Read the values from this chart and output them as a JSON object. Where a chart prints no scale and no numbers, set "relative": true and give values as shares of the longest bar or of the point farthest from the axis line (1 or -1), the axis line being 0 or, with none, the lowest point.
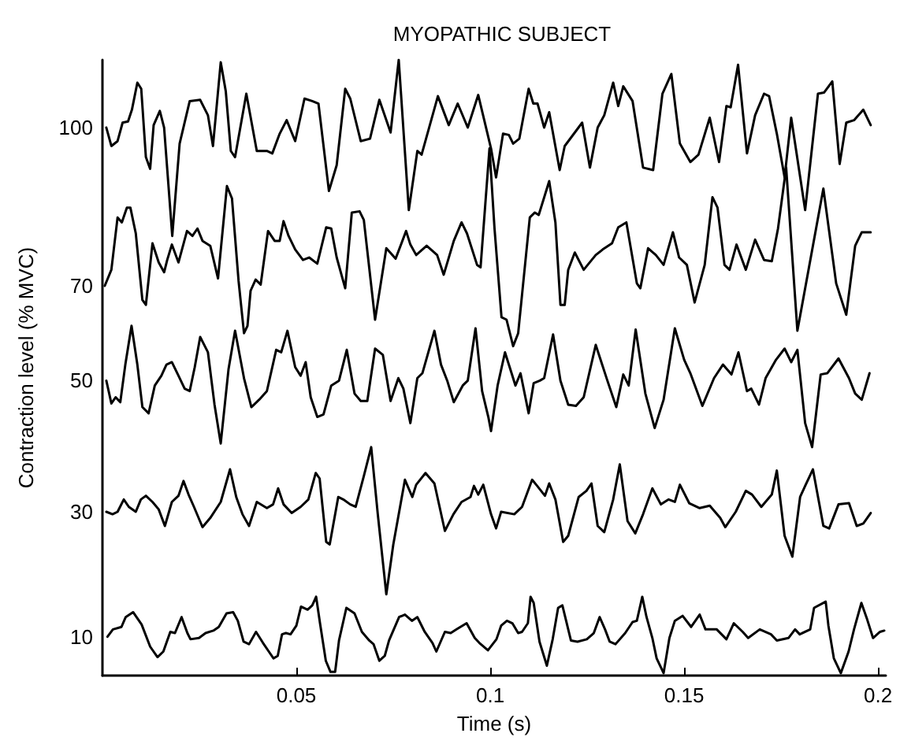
{
  "chart_data": {
    "type": "line",
    "title": "MYOPATHIC SUBJECT",
    "xlabel": "Time (s)",
    "ylabel": "Contraction level (% MVC)",
    "xlim": [
      0,
      0.202
    ],
    "xticks": [
      0.05,
      0.1,
      0.15,
      0.2
    ],
    "relative": true,
    "grid": false,
    "marker": "none",
    "line_style": "solid",
    "series": [
      {
        "name": "100",
        "color": "#000000",
        "x": [
          0.001,
          0.0023,
          0.0039,
          0.0052,
          0.0066,
          0.0076,
          0.009,
          0.01,
          0.0112,
          0.0123,
          0.0132,
          0.0148,
          0.0159,
          0.018,
          0.0199,
          0.0225,
          0.0252,
          0.0272,
          0.0285,
          0.0305,
          0.0318,
          0.0331,
          0.0342,
          0.0371,
          0.0398,
          0.0424,
          0.0438,
          0.0457,
          0.0475,
          0.0497,
          0.0521,
          0.0541,
          0.0557,
          0.0584,
          0.0604,
          0.0626,
          0.0639,
          0.0666,
          0.069,
          0.0714,
          0.0743,
          0.0764,
          0.079,
          0.0812,
          0.0823,
          0.0865,
          0.0893,
          0.0916,
          0.0942,
          0.0969,
          0.1002,
          0.1015,
          0.1033,
          0.1048,
          0.1059,
          0.1075,
          0.1099,
          0.1111,
          0.1122,
          0.1139,
          0.1152,
          0.1179,
          0.1192,
          0.1237,
          0.1257,
          0.1277,
          0.1294,
          0.1317,
          0.133,
          0.1343,
          0.1367,
          0.1394,
          0.142,
          0.1444,
          0.1467,
          0.1489,
          0.1516,
          0.1537,
          0.1566,
          0.159,
          0.1609,
          0.162,
          0.1639,
          0.1662,
          0.1683,
          0.1706,
          0.1719,
          0.1739,
          0.1759,
          0.1776,
          0.1812,
          0.1845,
          0.1861,
          0.1882,
          0.1901,
          0.1918,
          0.1938,
          0.1962,
          0.1981
        ],
        "values": [
          0.89,
          0.86,
          0.868,
          0.898,
          0.9,
          0.919,
          0.963,
          0.953,
          0.842,
          0.823,
          0.894,
          0.917,
          0.89,
          0.714,
          0.864,
          0.933,
          0.935,
          0.91,
          0.86,
          0.996,
          0.949,
          0.852,
          0.842,
          0.945,
          0.852,
          0.852,
          0.848,
          0.88,
          0.902,
          0.868,
          0.937,
          0.933,
          0.929,
          0.787,
          0.829,
          0.953,
          0.937,
          0.868,
          0.872,
          0.935,
          0.882,
          1.0,
          0.756,
          0.852,
          0.846,
          0.941,
          0.894,
          0.929,
          0.89,
          0.943,
          0.856,
          0.809,
          0.88,
          0.878,
          0.864,
          0.872,
          0.953,
          0.929,
          0.929,
          0.89,
          0.915,
          0.821,
          0.86,
          0.898,
          0.825,
          0.89,
          0.91,
          0.963,
          0.925,
          0.957,
          0.933,
          0.825,
          0.821,
          0.945,
          0.977,
          0.864,
          0.834,
          0.846,
          0.906,
          0.834,
          0.925,
          0.923,
          0.992,
          0.848,
          0.91,
          0.945,
          0.941,
          0.88,
          0.809,
          0.906,
          0.756,
          0.945,
          0.947,
          0.965,
          0.831,
          0.898,
          0.902,
          0.919,
          0.894
        ]
      },
      {
        "name": "70",
        "color": "#000000",
        "x": [
          0.0006,
          0.0023,
          0.0039,
          0.005,
          0.0063,
          0.0072,
          0.0086,
          0.0103,
          0.0112,
          0.0129,
          0.0145,
          0.0159,
          0.0167,
          0.0179,
          0.0196,
          0.0218,
          0.0232,
          0.0245,
          0.0258,
          0.0278,
          0.0298,
          0.0321,
          0.0334,
          0.0351,
          0.0365,
          0.0374,
          0.0382,
          0.0395,
          0.0408,
          0.0427,
          0.0444,
          0.0457,
          0.0467,
          0.048,
          0.0497,
          0.0517,
          0.0533,
          0.0554,
          0.0577,
          0.059,
          0.0604,
          0.0626,
          0.0643,
          0.0663,
          0.0674,
          0.0703,
          0.0732,
          0.0756,
          0.0783,
          0.0794,
          0.0809,
          0.0836,
          0.0863,
          0.088,
          0.0906,
          0.0926,
          0.094,
          0.0966,
          0.0975,
          0.0998,
          0.1011,
          0.1029,
          0.1042,
          0.1059,
          0.1072,
          0.1102,
          0.1115,
          0.1125,
          0.1152,
          0.1168,
          0.1181,
          0.1192,
          0.1201,
          0.1218,
          0.1241,
          0.1272,
          0.129,
          0.1314,
          0.133,
          0.1351,
          0.1378,
          0.1387,
          0.1407,
          0.1427,
          0.1447,
          0.1471,
          0.1487,
          0.1507,
          0.1527,
          0.1553,
          0.1573,
          0.1586,
          0.1604,
          0.1617,
          0.1635,
          0.1659,
          0.1683,
          0.1706,
          0.1726,
          0.1742,
          0.1763,
          0.1792,
          0.1859,
          0.1892,
          0.1918,
          0.1941,
          0.1958,
          0.1981
        ],
        "values": [
          0.633,
          0.659,
          0.744,
          0.736,
          0.76,
          0.76,
          0.718,
          0.61,
          0.602,
          0.702,
          0.671,
          0.655,
          0.675,
          0.7,
          0.671,
          0.722,
          0.714,
          0.726,
          0.706,
          0.698,
          0.645,
          0.795,
          0.775,
          0.641,
          0.556,
          0.568,
          0.625,
          0.643,
          0.635,
          0.722,
          0.706,
          0.706,
          0.738,
          0.714,
          0.692,
          0.675,
          0.679,
          0.669,
          0.728,
          0.726,
          0.679,
          0.629,
          0.752,
          0.754,
          0.74,
          0.578,
          0.694,
          0.677,
          0.722,
          0.7,
          0.683,
          0.698,
          0.683,
          0.651,
          0.706,
          0.736,
          0.718,
          0.667,
          0.663,
          0.856,
          0.726,
          0.582,
          0.578,
          0.535,
          0.556,
          0.744,
          0.752,
          0.748,
          0.803,
          0.736,
          0.602,
          0.602,
          0.659,
          0.687,
          0.659,
          0.683,
          0.692,
          0.702,
          0.728,
          0.736,
          0.637,
          0.629,
          0.694,
          0.683,
          0.667,
          0.72,
          0.679,
          0.667,
          0.606,
          0.667,
          0.777,
          0.76,
          0.667,
          0.659,
          0.7,
          0.659,
          0.708,
          0.675,
          0.673,
          0.726,
          0.825,
          0.56,
          0.791,
          0.637,
          0.586,
          0.698,
          0.72,
          0.72
        ]
      },
      {
        "name": "50",
        "color": "#000000",
        "x": [
          0.001,
          0.0023,
          0.0034,
          0.0046,
          0.0059,
          0.0075,
          0.009,
          0.0103,
          0.0119,
          0.0135,
          0.0152,
          0.0165,
          0.0179,
          0.0196,
          0.0212,
          0.0225,
          0.0238,
          0.0252,
          0.0272,
          0.0289,
          0.0305,
          0.0325,
          0.0342,
          0.0365,
          0.0384,
          0.0404,
          0.0424,
          0.0448,
          0.0461,
          0.0477,
          0.0497,
          0.0511,
          0.0524,
          0.0537,
          0.0554,
          0.057,
          0.059,
          0.061,
          0.063,
          0.065,
          0.0666,
          0.0683,
          0.0703,
          0.0723,
          0.0743,
          0.0763,
          0.0776,
          0.0794,
          0.0812,
          0.0825,
          0.0856,
          0.0873,
          0.0889,
          0.0906,
          0.0929,
          0.0942,
          0.0962,
          0.0979,
          0.0995,
          0.1002,
          0.1019,
          0.1038,
          0.1055,
          0.1065,
          0.1078,
          0.1099,
          0.1112,
          0.1128,
          0.1139,
          0.1162,
          0.1181,
          0.1201,
          0.1221,
          0.1241,
          0.1272,
          0.1301,
          0.1325,
          0.1343,
          0.1357,
          0.1375,
          0.14,
          0.1424,
          0.1447,
          0.1476,
          0.15,
          0.1516,
          0.1547,
          0.1577,
          0.16,
          0.1622,
          0.164,
          0.1662,
          0.1673,
          0.1693,
          0.171,
          0.1737,
          0.1759,
          0.1776,
          0.1792,
          0.1812,
          0.183,
          0.1852,
          0.1869,
          0.1898,
          0.1925,
          0.1941,
          0.1958,
          0.1978
        ],
        "values": [
          0.479,
          0.442,
          0.452,
          0.444,
          0.505,
          0.568,
          0.505,
          0.436,
          0.426,
          0.471,
          0.487,
          0.505,
          0.509,
          0.487,
          0.466,
          0.462,
          0.501,
          0.55,
          0.525,
          0.44,
          0.377,
          0.497,
          0.56,
          0.483,
          0.436,
          0.448,
          0.462,
          0.529,
          0.525,
          0.56,
          0.501,
          0.487,
          0.509,
          0.452,
          0.42,
          0.424,
          0.471,
          0.479,
          0.529,
          0.458,
          0.446,
          0.446,
          0.531,
          0.521,
          0.446,
          0.483,
          0.466,
          0.41,
          0.483,
          0.491,
          0.56,
          0.505,
          0.479,
          0.444,
          0.471,
          0.479,
          0.564,
          0.462,
          0.42,
          0.397,
          0.471,
          0.525,
          0.491,
          0.471,
          0.491,
          0.426,
          0.475,
          0.479,
          0.483,
          0.554,
          0.479,
          0.44,
          0.438,
          0.452,
          0.537,
          0.481,
          0.436,
          0.489,
          0.471,
          0.562,
          0.458,
          0.402,
          0.448,
          0.564,
          0.513,
          0.491,
          0.438,
          0.483,
          0.505,
          0.489,
          0.525,
          0.462,
          0.466,
          0.44,
          0.483,
          0.513,
          0.531,
          0.509,
          0.529,
          0.41,
          0.371,
          0.489,
          0.491,
          0.515,
          0.483,
          0.458,
          0.448,
          0.491
        ]
      },
      {
        "name": "30",
        "color": "#000000",
        "x": [
          0.001,
          0.0026,
          0.0039,
          0.0055,
          0.0068,
          0.0086,
          0.0099,
          0.0112,
          0.0129,
          0.0145,
          0.0161,
          0.0179,
          0.0196,
          0.0209,
          0.0222,
          0.0236,
          0.0258,
          0.0278,
          0.0305,
          0.0329,
          0.0345,
          0.0361,
          0.0378,
          0.0398,
          0.0424,
          0.044,
          0.0453,
          0.0467,
          0.0488,
          0.0511,
          0.0531,
          0.055,
          0.056,
          0.0577,
          0.0586,
          0.0608,
          0.0621,
          0.0639,
          0.0653,
          0.0674,
          0.0693,
          0.071,
          0.0732,
          0.075,
          0.078,
          0.0799,
          0.0809,
          0.0833,
          0.0856,
          0.0883,
          0.0905,
          0.0926,
          0.0949,
          0.0958,
          0.0969,
          0.0982,
          0.1002,
          0.1015,
          0.1028,
          0.1062,
          0.1082,
          0.1108,
          0.1121,
          0.1141,
          0.1152,
          0.1168,
          0.1188,
          0.1201,
          0.1228,
          0.1248,
          0.1261,
          0.1277,
          0.1294,
          0.1317,
          0.1334,
          0.1354,
          0.1374,
          0.1394,
          0.1418,
          0.144,
          0.146,
          0.1476,
          0.1489,
          0.1513,
          0.154,
          0.1566,
          0.1593,
          0.1606,
          0.1633,
          0.1659,
          0.1675,
          0.1699,
          0.1726,
          0.1739,
          0.1759,
          0.1779,
          0.1799,
          0.1812,
          0.1832,
          0.1859,
          0.1874,
          0.1898,
          0.1925,
          0.1945,
          0.1962,
          0.1981
        ],
        "values": [
          0.266,
          0.262,
          0.266,
          0.286,
          0.274,
          0.266,
          0.286,
          0.292,
          0.282,
          0.27,
          0.243,
          0.282,
          0.292,
          0.316,
          0.294,
          0.274,
          0.241,
          0.256,
          0.282,
          0.335,
          0.29,
          0.262,
          0.243,
          0.282,
          0.272,
          0.278,
          0.304,
          0.278,
          0.264,
          0.274,
          0.286,
          0.329,
          0.32,
          0.217,
          0.213,
          0.29,
          0.286,
          0.278,
          0.274,
          0.324,
          0.371,
          0.262,
          0.132,
          0.213,
          0.318,
          0.29,
          0.31,
          0.329,
          0.312,
          0.235,
          0.262,
          0.282,
          0.29,
          0.308,
          0.294,
          0.31,
          0.262,
          0.239,
          0.266,
          0.262,
          0.274,
          0.318,
          0.308,
          0.292,
          0.312,
          0.286,
          0.217,
          0.227,
          0.29,
          0.3,
          0.312,
          0.243,
          0.233,
          0.286,
          0.343,
          0.251,
          0.231,
          0.262,
          0.304,
          0.278,
          0.286,
          0.282,
          0.31,
          0.28,
          0.272,
          0.276,
          0.256,
          0.241,
          0.266,
          0.3,
          0.294,
          0.274,
          0.294,
          0.333,
          0.227,
          0.193,
          0.29,
          0.308,
          0.335,
          0.243,
          0.239,
          0.278,
          0.28,
          0.243,
          0.247,
          0.264
        ]
      },
      {
        "name": "10",
        "color": "#000000",
        "x": [
          0.0013,
          0.0027,
          0.0049,
          0.006,
          0.0079,
          0.0101,
          0.0123,
          0.0142,
          0.0157,
          0.0175,
          0.0187,
          0.0204,
          0.0219,
          0.0227,
          0.0249,
          0.0266,
          0.0286,
          0.03,
          0.032,
          0.0337,
          0.0349,
          0.0364,
          0.0378,
          0.0396,
          0.0414,
          0.0429,
          0.0441,
          0.0452,
          0.0463,
          0.0473,
          0.0485,
          0.05,
          0.0512,
          0.0529,
          0.0541,
          0.0551,
          0.0561,
          0.0576,
          0.0588,
          0.06,
          0.061,
          0.0629,
          0.065,
          0.0669,
          0.0688,
          0.0699,
          0.0714,
          0.0728,
          0.0739,
          0.0765,
          0.078,
          0.0798,
          0.0812,
          0.0831,
          0.0851,
          0.0861,
          0.0883,
          0.0898,
          0.0913,
          0.0939,
          0.096,
          0.0972,
          0.0994,
          0.1016,
          0.1028,
          0.1043,
          0.1057,
          0.1072,
          0.1082,
          0.1097,
          0.1104,
          0.1112,
          0.1127,
          0.1146,
          0.1161,
          0.1175,
          0.1186,
          0.1208,
          0.1225,
          0.1249,
          0.1267,
          0.1282,
          0.1296,
          0.1308,
          0.1323,
          0.1348,
          0.1367,
          0.1378,
          0.1392,
          0.1403,
          0.1418,
          0.1429,
          0.1447,
          0.1462,
          0.1476,
          0.1496,
          0.1518,
          0.154,
          0.1555,
          0.1584,
          0.1609,
          0.1628,
          0.1651,
          0.1665,
          0.1695,
          0.1724,
          0.1739,
          0.1769,
          0.1786,
          0.1798,
          0.1825,
          0.1835,
          0.1865,
          0.1872,
          0.1886,
          0.1904,
          0.1924,
          0.1938,
          0.1957,
          0.1972,
          0.1987,
          0.2005,
          0.2016
        ],
        "values": [
          0.063,
          0.075,
          0.079,
          0.095,
          0.103,
          0.083,
          0.047,
          0.03,
          0.039,
          0.071,
          0.069,
          0.095,
          0.069,
          0.059,
          0.061,
          0.069,
          0.073,
          0.079,
          0.101,
          0.103,
          0.089,
          0.055,
          0.051,
          0.071,
          0.053,
          0.039,
          0.028,
          0.032,
          0.067,
          0.069,
          0.067,
          0.081,
          0.112,
          0.107,
          0.114,
          0.128,
          0.085,
          0.024,
          0.006,
          0.006,
          0.057,
          0.11,
          0.101,
          0.071,
          0.057,
          0.051,
          0.024,
          0.032,
          0.057,
          0.095,
          0.099,
          0.089,
          0.095,
          0.071,
          0.053,
          0.039,
          0.071,
          0.069,
          0.075,
          0.085,
          0.061,
          0.053,
          0.041,
          0.059,
          0.081,
          0.089,
          0.085,
          0.069,
          0.071,
          0.085,
          0.128,
          0.118,
          0.055,
          0.016,
          0.059,
          0.11,
          0.114,
          0.057,
          0.055,
          0.059,
          0.069,
          0.095,
          0.075,
          0.055,
          0.051,
          0.069,
          0.087,
          0.089,
          0.128,
          0.095,
          0.061,
          0.028,
          0.004,
          0.061,
          0.089,
          0.097,
          0.079,
          0.099,
          0.075,
          0.075,
          0.059,
          0.085,
          0.071,
          0.061,
          0.075,
          0.067,
          0.057,
          0.061,
          0.075,
          0.067,
          0.075,
          0.11,
          0.12,
          0.081,
          0.028,
          0.004,
          0.039,
          0.075,
          0.118,
          0.091,
          0.061,
          0.071,
          0.073
        ]
      }
    ]
  }
}
